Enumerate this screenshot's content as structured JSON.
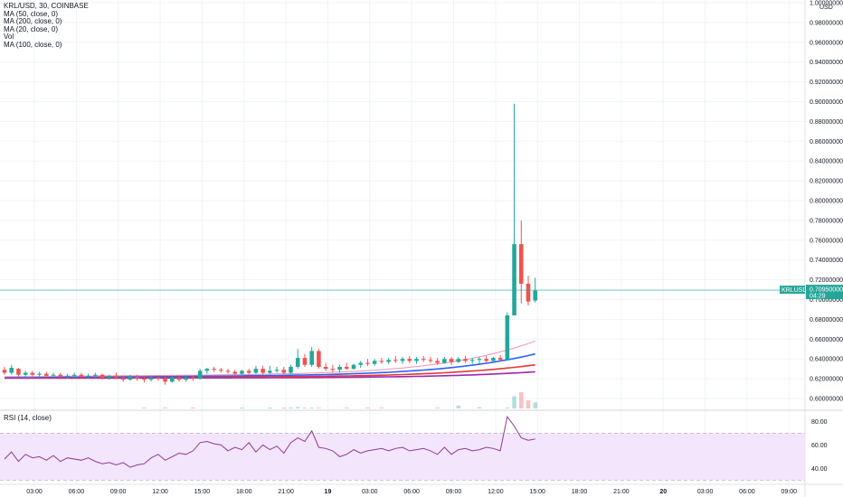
{
  "header": {
    "symbol_line": "KRL/USD, 30, COINBASE",
    "indicators": [
      "MA (50, close, 0)",
      "MA (200, close, 0)",
      "MA (20, close, 0)",
      "Vol",
      "MA (100, close, 0)"
    ]
  },
  "price_axis": {
    "currency": "USD",
    "tick_labels": [
      "1.00000000",
      "0.98000000",
      "0.96000000",
      "0.94000000",
      "0.92000000",
      "0.90000000",
      "0.88000000",
      "0.86000000",
      "0.84000000",
      "0.82000000",
      "0.80000000",
      "0.78000000",
      "0.76000000",
      "0.74000000",
      "0.72000000",
      "0.70000000",
      "0.68000000",
      "0.66000000",
      "0.64000000",
      "0.62000000",
      "0.60000000"
    ]
  },
  "last_price_tag": {
    "symbol": "KRLUSD",
    "price": "0.70950000",
    "countdown": "04:29",
    "color": "#26a69a"
  },
  "rsi": {
    "legend": "RSI (14, close)",
    "tick_labels": [
      "80.00",
      "60.00",
      "40.00"
    ],
    "band_color": "#f3e5fb",
    "line_color": "#8e3c91"
  },
  "time_axis": {
    "labels": [
      "03:00",
      "06:00",
      "09:00",
      "12:00",
      "15:00",
      "18:00",
      "21:00",
      "19",
      "03:00",
      "06:00",
      "09:00",
      "12:00",
      "15:00",
      "18:00",
      "21:00",
      "20",
      "03:00",
      "06:00",
      "09:00"
    ]
  },
  "colors": {
    "up": "#26a69a",
    "down": "#ef5350",
    "ma50": "#2962ff",
    "ma200": "#9c27b0",
    "ma20": "#f48fb1",
    "ma100": "#e53935"
  },
  "chart_data": {
    "type": "candlestick",
    "pair": "KRL/USD",
    "interval": "30",
    "exchange": "COINBASE",
    "ylim": [
      0.6,
      1.0
    ],
    "candles": [
      [
        0.629,
        0.632,
        0.624,
        0.626
      ],
      [
        0.626,
        0.634,
        0.624,
        0.631
      ],
      [
        0.63,
        0.631,
        0.622,
        0.624
      ],
      [
        0.624,
        0.628,
        0.621,
        0.626
      ],
      [
        0.626,
        0.628,
        0.622,
        0.624
      ],
      [
        0.624,
        0.627,
        0.621,
        0.625
      ],
      [
        0.625,
        0.627,
        0.621,
        0.623
      ],
      [
        0.623,
        0.626,
        0.62,
        0.624
      ],
      [
        0.624,
        0.626,
        0.621,
        0.622
      ],
      [
        0.622,
        0.625,
        0.62,
        0.623
      ],
      [
        0.623,
        0.626,
        0.621,
        0.624
      ],
      [
        0.624,
        0.626,
        0.621,
        0.622
      ],
      [
        0.622,
        0.625,
        0.62,
        0.623
      ],
      [
        0.623,
        0.626,
        0.621,
        0.624
      ],
      [
        0.624,
        0.625,
        0.619,
        0.621
      ],
      [
        0.621,
        0.624,
        0.619,
        0.623
      ],
      [
        0.623,
        0.626,
        0.62,
        0.621
      ],
      [
        0.621,
        0.623,
        0.617,
        0.619
      ],
      [
        0.619,
        0.624,
        0.618,
        0.622
      ],
      [
        0.622,
        0.624,
        0.618,
        0.62
      ],
      [
        0.62,
        0.623,
        0.616,
        0.619
      ],
      [
        0.619,
        0.623,
        0.617,
        0.621
      ],
      [
        0.621,
        0.623,
        0.618,
        0.62
      ],
      [
        0.62,
        0.622,
        0.614,
        0.617
      ],
      [
        0.617,
        0.623,
        0.616,
        0.621
      ],
      [
        0.621,
        0.623,
        0.617,
        0.619
      ],
      [
        0.619,
        0.623,
        0.617,
        0.621
      ],
      [
        0.621,
        0.623,
        0.618,
        0.62
      ],
      [
        0.62,
        0.63,
        0.619,
        0.628
      ],
      [
        0.628,
        0.631,
        0.625,
        0.63
      ],
      [
        0.63,
        0.632,
        0.627,
        0.629
      ],
      [
        0.629,
        0.631,
        0.626,
        0.628
      ],
      [
        0.628,
        0.63,
        0.625,
        0.627
      ],
      [
        0.627,
        0.629,
        0.623,
        0.625
      ],
      [
        0.625,
        0.629,
        0.624,
        0.628
      ],
      [
        0.628,
        0.63,
        0.624,
        0.626
      ],
      [
        0.626,
        0.633,
        0.625,
        0.63
      ],
      [
        0.63,
        0.633,
        0.624,
        0.626
      ],
      [
        0.626,
        0.633,
        0.625,
        0.628
      ],
      [
        0.628,
        0.632,
        0.626,
        0.629
      ],
      [
        0.629,
        0.632,
        0.623,
        0.626
      ],
      [
        0.626,
        0.634,
        0.625,
        0.632
      ],
      [
        0.632,
        0.65,
        0.63,
        0.641
      ],
      [
        0.641,
        0.645,
        0.632,
        0.634
      ],
      [
        0.634,
        0.652,
        0.632,
        0.648
      ],
      [
        0.648,
        0.65,
        0.63,
        0.632
      ],
      [
        0.632,
        0.636,
        0.628,
        0.63
      ],
      [
        0.63,
        0.634,
        0.626,
        0.629
      ],
      [
        0.629,
        0.634,
        0.626,
        0.632
      ],
      [
        0.632,
        0.636,
        0.629,
        0.63
      ],
      [
        0.63,
        0.635,
        0.629,
        0.634
      ],
      [
        0.634,
        0.638,
        0.631,
        0.636
      ],
      [
        0.636,
        0.64,
        0.633,
        0.635
      ],
      [
        0.635,
        0.64,
        0.633,
        0.638
      ],
      [
        0.638,
        0.641,
        0.635,
        0.637
      ],
      [
        0.637,
        0.641,
        0.635,
        0.639
      ],
      [
        0.639,
        0.643,
        0.636,
        0.638
      ],
      [
        0.638,
        0.642,
        0.635,
        0.64
      ],
      [
        0.64,
        0.643,
        0.636,
        0.638
      ],
      [
        0.638,
        0.642,
        0.635,
        0.64
      ],
      [
        0.64,
        0.643,
        0.637,
        0.639
      ],
      [
        0.639,
        0.642,
        0.636,
        0.638
      ],
      [
        0.638,
        0.641,
        0.634,
        0.636
      ],
      [
        0.636,
        0.642,
        0.635,
        0.64
      ],
      [
        0.64,
        0.642,
        0.634,
        0.637
      ],
      [
        0.637,
        0.642,
        0.636,
        0.64
      ],
      [
        0.64,
        0.643,
        0.636,
        0.638
      ],
      [
        0.638,
        0.641,
        0.635,
        0.639
      ],
      [
        0.639,
        0.642,
        0.635,
        0.64
      ],
      [
        0.64,
        0.643,
        0.636,
        0.638
      ],
      [
        0.638,
        0.642,
        0.636,
        0.641
      ],
      [
        0.641,
        0.644,
        0.637,
        0.639
      ],
      [
        0.639,
        0.687,
        0.639,
        0.684
      ],
      [
        0.684,
        0.898,
        0.686,
        0.756
      ],
      [
        0.756,
        0.78,
        0.696,
        0.716
      ],
      [
        0.716,
        0.724,
        0.694,
        0.698
      ],
      [
        0.699,
        0.722,
        0.697,
        0.709
      ]
    ],
    "volume": [
      0,
      0,
      0,
      0,
      0,
      0,
      0,
      0,
      0,
      0,
      0,
      0,
      0,
      0,
      0,
      0,
      0,
      0,
      0,
      0,
      0.2,
      0,
      0,
      0.25,
      0,
      0,
      0,
      0.15,
      0,
      0,
      0,
      0,
      0,
      0,
      0.1,
      0,
      0,
      0,
      0.15,
      0,
      0.1,
      0.1,
      0.35,
      0.2,
      0.1,
      0.05,
      0,
      0,
      0,
      0.05,
      0,
      0,
      0.05,
      0,
      0.05,
      0,
      0,
      0,
      0,
      0,
      0,
      0,
      0.1,
      0,
      0,
      0.7,
      0,
      0,
      0.3,
      0,
      0,
      0,
      0.2,
      3.0,
      4.0,
      2.0,
      1.5
    ],
    "rsi_values": [
      48,
      54,
      46,
      52,
      49,
      50,
      47,
      51,
      46,
      49,
      48,
      47,
      49,
      46,
      44,
      45,
      43,
      45,
      41,
      43,
      44,
      49,
      52,
      47,
      50,
      53,
      52,
      55,
      62,
      63,
      61,
      60,
      55,
      58,
      56,
      62,
      54,
      60,
      56,
      59,
      53,
      62,
      66,
      63,
      72,
      58,
      57,
      55,
      50,
      52,
      56,
      53,
      55,
      56,
      57,
      55,
      57,
      58,
      55,
      56,
      57,
      55,
      52,
      58,
      52,
      56,
      57,
      55,
      56,
      58,
      57,
      55,
      84,
      76,
      66,
      64,
      65
    ],
    "ma": {
      "ma20": {
        "start": 0.622,
        "end": 0.658
      },
      "ma50": {
        "start": 0.6215,
        "end": 0.645
      },
      "ma100": {
        "start": 0.621,
        "end": 0.634
      },
      "ma200": {
        "start": 0.6205,
        "end": 0.627
      }
    }
  }
}
